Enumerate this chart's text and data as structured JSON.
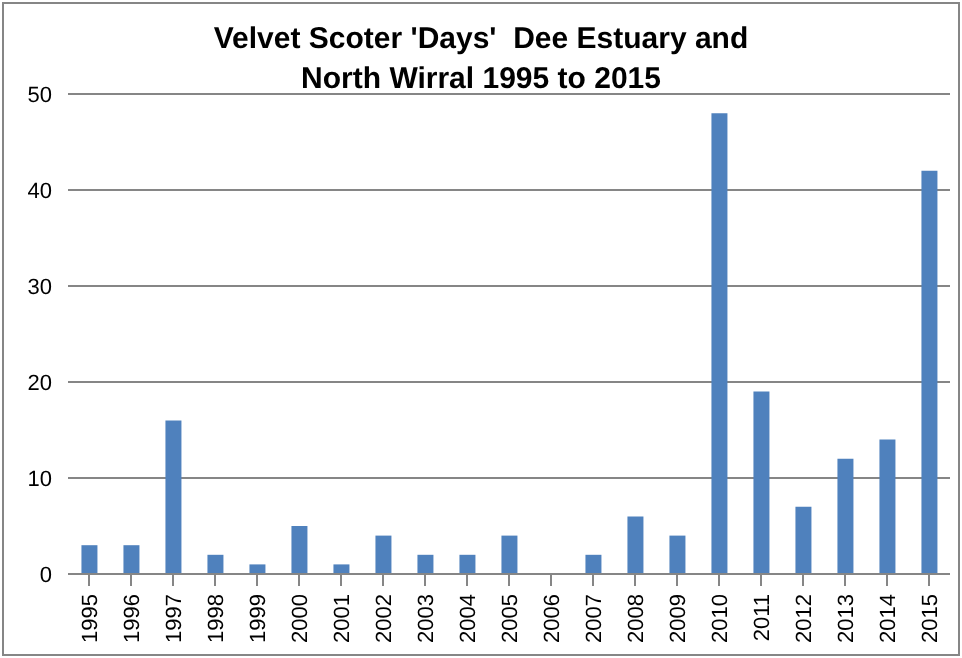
{
  "chart_data": {
    "type": "bar",
    "title": "Velvet Scoter 'Days'  Dee Estuary and North Wirral 1995 to 2015",
    "categories": [
      "1995",
      "1996",
      "1997",
      "1998",
      "1999",
      "2000",
      "2001",
      "2002",
      "2003",
      "2004",
      "2005",
      "2006",
      "2007",
      "2008",
      "2009",
      "2010",
      "2011",
      "2012",
      "2013",
      "2014",
      "2015"
    ],
    "values": [
      3,
      3,
      16,
      2,
      1,
      5,
      1,
      4,
      2,
      2,
      4,
      0,
      2,
      6,
      4,
      48,
      19,
      7,
      12,
      14,
      42
    ],
    "color": "#4f81bd",
    "ylim": [
      0,
      50
    ],
    "yticks": [
      0,
      10,
      20,
      30,
      40,
      50
    ],
    "grid": "y"
  }
}
